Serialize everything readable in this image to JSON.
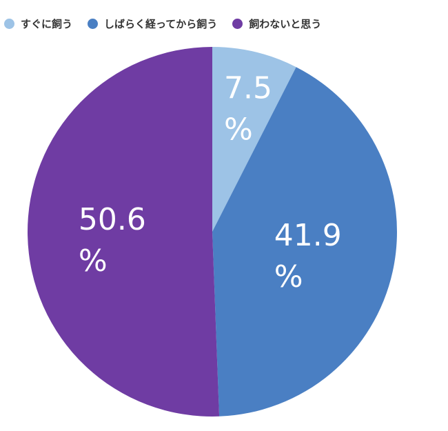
{
  "chart_data": {
    "type": "pie",
    "slices": [
      {
        "label": "すぐに飼う",
        "value": 7.5,
        "color": "#9DC3E6"
      },
      {
        "label": "しばらく経ってから飼う",
        "value": 41.9,
        "color": "#4A7FC3"
      },
      {
        "label": "飼わないと思う",
        "value": 50.6,
        "color": "#6F3CA3"
      }
    ],
    "value_suffix": "%",
    "legend_position": "top"
  }
}
